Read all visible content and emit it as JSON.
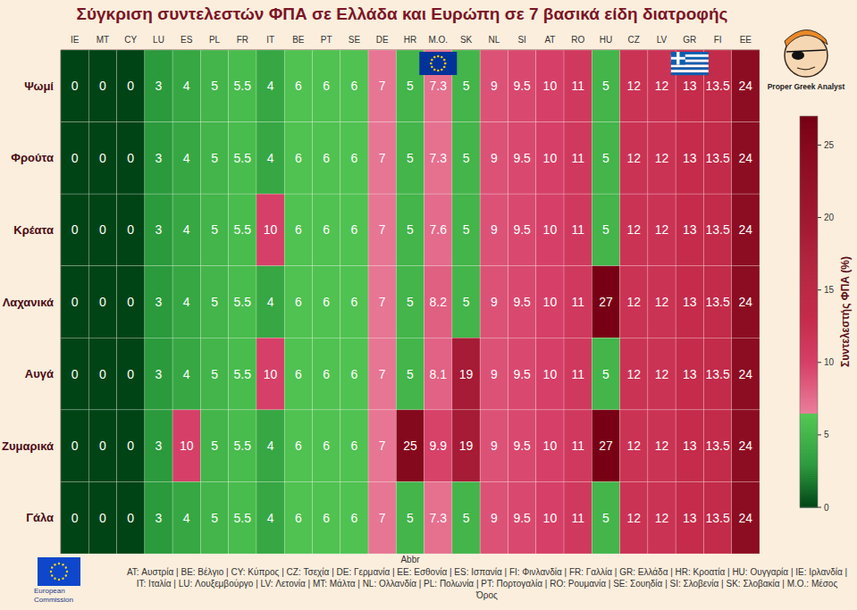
{
  "chart_data": {
    "type": "heatmap",
    "title": "Σύγκριση συντελεστών ΦΠΑ σε Ελλάδα και Ευρώπη σε 7 βασικά είδη διατροφής",
    "x_label": "Abbr",
    "categories": [
      "IE",
      "MT",
      "CY",
      "LU",
      "ES",
      "PL",
      "FR",
      "IT",
      "BE",
      "PT",
      "SE",
      "DE",
      "HR",
      "M.O.",
      "SK",
      "NL",
      "SI",
      "AT",
      "RO",
      "HU",
      "CZ",
      "LV",
      "GR",
      "FI",
      "EE"
    ],
    "rows": [
      "Ψωμί",
      "Φρούτα",
      "Κρέατα",
      "Λαχανικά",
      "Αυγά",
      "Ζυμαρικά",
      "Γάλα"
    ],
    "cells": [
      [
        0,
        0,
        0,
        3,
        4,
        5,
        5.5,
        4,
        6,
        6,
        6,
        7,
        5,
        7.3,
        5,
        9,
        9.5,
        10,
        11,
        5,
        12,
        12,
        13,
        13.5,
        24
      ],
      [
        0,
        0,
        0,
        3,
        4,
        5,
        5.5,
        4,
        6,
        6,
        6,
        7,
        5,
        7.3,
        5,
        9,
        9.5,
        10,
        11,
        5,
        12,
        12,
        13,
        13.5,
        24
      ],
      [
        0,
        0,
        0,
        3,
        4,
        5,
        5.5,
        10,
        6,
        6,
        6,
        7,
        5,
        7.6,
        5,
        9,
        9.5,
        10,
        11,
        5,
        12,
        12,
        13,
        13.5,
        24
      ],
      [
        0,
        0,
        0,
        3,
        4,
        5,
        5.5,
        4,
        6,
        6,
        6,
        7,
        5,
        8.2,
        5,
        9,
        9.5,
        10,
        11,
        27,
        12,
        12,
        13,
        13.5,
        24
      ],
      [
        0,
        0,
        0,
        3,
        4,
        5,
        5.5,
        10,
        6,
        6,
        6,
        7,
        5,
        8.1,
        19,
        9,
        9.5,
        10,
        11,
        5,
        12,
        12,
        13,
        13.5,
        24
      ],
      [
        0,
        0,
        0,
        3,
        10,
        5,
        5.5,
        4,
        6,
        6,
        6,
        7,
        25,
        9.9,
        19,
        9,
        9.5,
        10,
        11,
        27,
        12,
        12,
        13,
        13.5,
        24
      ],
      [
        0,
        0,
        0,
        3,
        4,
        5,
        5.5,
        4,
        6,
        6,
        6,
        7,
        5,
        7.3,
        5,
        9,
        9.5,
        10,
        11,
        5,
        12,
        12,
        13,
        13.5,
        24
      ]
    ],
    "data_labels": true,
    "colorbar": {
      "label": "Συντελεστής ΦΠΑ (%)",
      "range": [
        0,
        27
      ],
      "ticks": [
        0,
        5,
        10,
        15,
        20,
        25
      ]
    },
    "footnote": "AT: Αυστρία | BE: Βέλγιο | CY: Κύπρος | CZ: Τσεχία | DE: Γερμανία | EE: Εσθονία | ES: Ισπανία | FI: Φινλανδία | FR: Γαλλία | GR: Ελλάδα | HR: Κροατία | HU: Ουγγαρία | IE: Ιρλανδία | IT: Ιταλία | LU: Λουξεμβούργο | LV: Λετονία | MT: Μάλτα | NL: Ολλανδία | PL: Πολωνία | PT: Πορτογαλία | RO: Ρουμανία | SE: Σουηδία | SI: Σλοβενία | SK: Σλοβακία | M.O.: Μέσος Όρος",
    "annotations": [
      "Proper Greek Analyst",
      "European Commission"
    ]
  }
}
